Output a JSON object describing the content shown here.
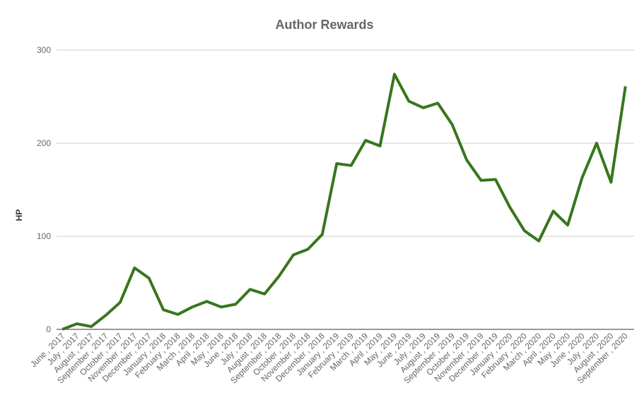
{
  "chart_data": {
    "type": "line",
    "title": "Author Rewards",
    "y_label": "HP",
    "categories": [
      "June , 2017",
      "July , 2017",
      "August , 2017",
      "September , 2017",
      "October , 2017",
      "November , 2017",
      "December , 2017",
      "January , 2018",
      "February , 2018",
      "March , 2018",
      "April , 2018",
      "May , 2018",
      "June , 2018",
      "July , 2018",
      "August , 2018",
      "September , 2018",
      "October , 2018",
      "November , 2018",
      "December , 2018",
      "January , 2019",
      "February , 2019",
      "March , 2019",
      "April , 2019",
      "May , 2019",
      "June , 2019",
      "July , 2019",
      "August , 2019",
      "September , 2019",
      "October , 2019",
      "November , 2019",
      "December , 2019",
      "January , 2020",
      "February , 2020",
      "March , 2020",
      "April , 2020",
      "May , 2020",
      "June , 2020",
      "July , 2020",
      "August , 2020",
      "September , 2020"
    ],
    "series": [
      {
        "name": "HP",
        "color": "#38761d",
        "values": [
          0,
          6,
          3,
          15,
          29,
          66,
          55,
          21,
          16,
          24,
          30,
          24,
          27,
          43,
          38,
          57,
          80,
          86,
          102,
          178,
          176,
          203,
          197,
          274,
          245,
          238,
          243,
          220,
          182,
          160,
          161,
          131,
          106,
          95,
          127,
          112,
          163,
          200,
          158,
          261
        ]
      }
    ],
    "ylim": [
      0,
      300
    ],
    "yticks": [
      0,
      100,
      200,
      300
    ],
    "grid": true
  }
}
